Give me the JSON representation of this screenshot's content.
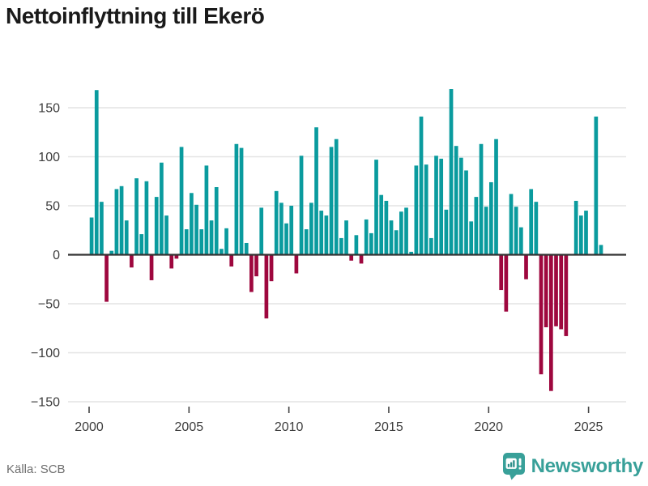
{
  "title": "Nettoinflyttning till Ekerö",
  "source": "Källa: SCB",
  "brand": {
    "name": "Newsworthy",
    "color": "#38a099"
  },
  "colors": {
    "positive_bar": "#0a9b9e",
    "negative_bar": "#9e073e",
    "grid": "#e4e4e4",
    "zero_line": "#333333",
    "axis_text": "#3d3d3d",
    "tick_mark": "#444444"
  },
  "chart_data": {
    "type": "bar",
    "title": "Nettoinflyttning till Ekerö",
    "xlabel": "",
    "ylabel": "",
    "x_unit": "quarter",
    "start_quarter": "2000-Q1",
    "end_quarter": "2025-Q3",
    "ylim": [
      -160,
      180
    ],
    "grid": true,
    "y_ticks": [
      150,
      100,
      50,
      0,
      -50,
      -100,
      -150
    ],
    "y_tick_labels": [
      "150",
      "100",
      "50",
      "0",
      "−50",
      "−100",
      "−150"
    ],
    "x_ticks": [
      2000,
      2005,
      2010,
      2015,
      2020,
      2025
    ],
    "x_tick_labels": [
      "2000",
      "2005",
      "2010",
      "2015",
      "2020",
      "2025"
    ],
    "values": [
      38,
      168,
      54,
      -48,
      4,
      67,
      70,
      35,
      -13,
      78,
      21,
      75,
      -26,
      59,
      94,
      40,
      -14,
      -4,
      110,
      26,
      63,
      51,
      26,
      91,
      35,
      69,
      6,
      27,
      -12,
      113,
      109,
      12,
      -38,
      -22,
      48,
      -65,
      -27,
      65,
      53,
      32,
      50,
      -19,
      101,
      26,
      53,
      130,
      45,
      40,
      110,
      118,
      17,
      35,
      -6,
      20,
      -9,
      36,
      22,
      97,
      61,
      55,
      35,
      25,
      44,
      48,
      3,
      91,
      141,
      92,
      17,
      101,
      98,
      46,
      169,
      111,
      99,
      86,
      34,
      59,
      113,
      49,
      74,
      118,
      -36,
      -58,
      62,
      49,
      28,
      -25,
      67,
      54,
      -122,
      -74,
      -139,
      -73,
      -76,
      -83,
      0,
      55,
      40,
      45,
      0,
      141,
      10
    ]
  }
}
